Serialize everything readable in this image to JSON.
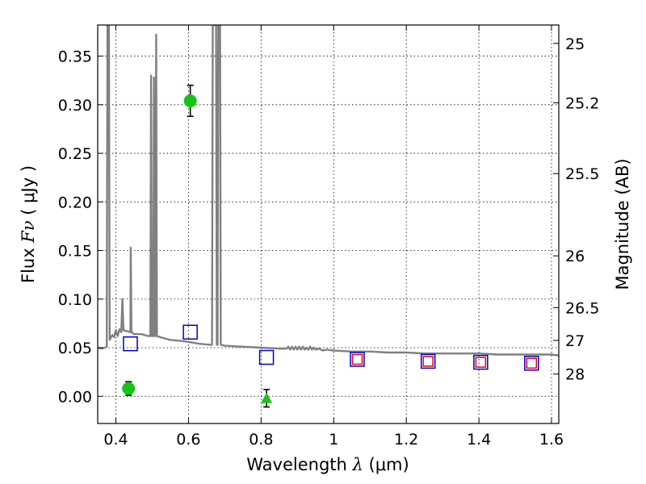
{
  "chart_data": {
    "type": "scatter",
    "xlabel": {
      "prefix": "Wavelength  ",
      "symbol": "λ",
      "suffix": " (μm)"
    },
    "ylabel": {
      "prefix": "Flux  ",
      "symbol": "Fν",
      "suffix": "  ( μJy )"
    },
    "y2label": "Magnitude (AB)",
    "xlim": [
      0.35,
      1.62
    ],
    "ylim": [
      -0.028,
      0.382
    ],
    "grid": true,
    "x_ticks": [
      {
        "value": 0.4,
        "label": "0.4"
      },
      {
        "value": 0.6,
        "label": "0.6"
      },
      {
        "value": 0.8,
        "label": "0.8"
      },
      {
        "value": 1.0,
        "label": "1"
      },
      {
        "value": 1.2,
        "label": "1.2"
      },
      {
        "value": 1.4,
        "label": "1.4"
      },
      {
        "value": 1.6,
        "label": "1.6"
      }
    ],
    "y_ticks": [
      {
        "value": 0.0,
        "label": "0.00"
      },
      {
        "value": 0.05,
        "label": "0.05"
      },
      {
        "value": 0.1,
        "label": "0.10"
      },
      {
        "value": 0.15,
        "label": "0.15"
      },
      {
        "value": 0.2,
        "label": "0.20"
      },
      {
        "value": 0.25,
        "label": "0.25"
      },
      {
        "value": 0.3,
        "label": "0.30"
      },
      {
        "value": 0.35,
        "label": "0.35"
      }
    ],
    "magnitude_ticks": [
      {
        "flux": 0.3631,
        "label": "25"
      },
      {
        "flux": 0.302,
        "label": "25.2"
      },
      {
        "flux": 0.2291,
        "label": "25.5"
      },
      {
        "flux": 0.1445,
        "label": "26"
      },
      {
        "flux": 0.0912,
        "label": "26.5"
      },
      {
        "flux": 0.0575,
        "label": "27"
      },
      {
        "flux": 0.0229,
        "label": "28"
      }
    ],
    "series": [
      {
        "kind": "line",
        "color": "#808080",
        "points": [
          [
            0.35,
            0.05
          ],
          [
            0.36,
            0.049
          ],
          [
            0.37,
            0.05
          ],
          [
            0.375,
            0.051
          ],
          [
            0.377,
            0.382
          ],
          [
            0.381,
            0.382
          ],
          [
            0.383,
            0.058
          ],
          [
            0.39,
            0.063
          ],
          [
            0.395,
            0.061
          ],
          [
            0.4,
            0.068
          ],
          [
            0.405,
            0.062
          ],
          [
            0.41,
            0.069
          ],
          [
            0.415,
            0.066
          ],
          [
            0.418,
            0.1
          ],
          [
            0.421,
            0.068
          ],
          [
            0.43,
            0.067
          ],
          [
            0.44,
            0.066
          ],
          [
            0.441,
            0.153
          ],
          [
            0.443,
            0.066
          ],
          [
            0.45,
            0.064
          ],
          [
            0.47,
            0.064
          ],
          [
            0.49,
            0.062
          ],
          [
            0.495,
            0.062
          ],
          [
            0.497,
            0.33
          ],
          [
            0.499,
            0.062
          ],
          [
            0.503,
            0.062
          ],
          [
            0.505,
            0.328
          ],
          [
            0.507,
            0.062
          ],
          [
            0.509,
            0.062
          ],
          [
            0.511,
            0.372
          ],
          [
            0.513,
            0.062
          ],
          [
            0.53,
            0.06
          ],
          [
            0.55,
            0.058
          ],
          [
            0.58,
            0.057
          ],
          [
            0.6,
            0.056
          ],
          [
            0.63,
            0.054
          ],
          [
            0.66,
            0.053
          ],
          [
            0.665,
            0.053
          ],
          [
            0.667,
            0.382
          ],
          [
            0.676,
            0.382
          ],
          [
            0.678,
            0.053
          ],
          [
            0.68,
            0.053
          ],
          [
            0.682,
            0.382
          ],
          [
            0.687,
            0.382
          ],
          [
            0.689,
            0.053
          ],
          [
            0.7,
            0.052
          ],
          [
            0.75,
            0.051
          ],
          [
            0.8,
            0.05
          ],
          [
            0.85,
            0.049
          ],
          [
            0.87,
            0.049
          ],
          [
            0.875,
            0.051
          ],
          [
            0.88,
            0.048
          ],
          [
            0.885,
            0.051
          ],
          [
            0.89,
            0.048
          ],
          [
            0.895,
            0.051
          ],
          [
            0.9,
            0.048
          ],
          [
            0.905,
            0.051
          ],
          [
            0.91,
            0.048
          ],
          [
            0.915,
            0.051
          ],
          [
            0.92,
            0.048
          ],
          [
            0.925,
            0.05
          ],
          [
            0.93,
            0.048
          ],
          [
            0.935,
            0.051
          ],
          [
            0.94,
            0.048
          ],
          [
            0.945,
            0.05
          ],
          [
            0.95,
            0.048
          ],
          [
            0.96,
            0.049
          ],
          [
            0.97,
            0.047
          ],
          [
            0.98,
            0.048
          ],
          [
            1.0,
            0.047
          ],
          [
            1.05,
            0.046
          ],
          [
            1.1,
            0.046
          ],
          [
            1.15,
            0.045
          ],
          [
            1.2,
            0.045
          ],
          [
            1.25,
            0.044
          ],
          [
            1.3,
            0.044
          ],
          [
            1.35,
            0.044
          ],
          [
            1.4,
            0.044
          ],
          [
            1.45,
            0.043
          ],
          [
            1.5,
            0.043
          ],
          [
            1.55,
            0.043
          ],
          [
            1.6,
            0.043
          ],
          [
            1.62,
            0.042
          ]
        ]
      },
      {
        "kind": "circle",
        "color": "#17c317",
        "points": [
          {
            "x": 0.435,
            "y": 0.008,
            "err": 0.007
          },
          {
            "x": 0.605,
            "y": 0.304,
            "err": 0.016
          }
        ]
      },
      {
        "kind": "triangle",
        "color": "#17c317",
        "points": [
          {
            "x": 0.815,
            "y": -0.002,
            "err": 0.009
          }
        ]
      },
      {
        "kind": "square-blue",
        "color": "#0000cc",
        "points": [
          {
            "x": 0.44,
            "y": 0.054
          },
          {
            "x": 0.605,
            "y": 0.066
          },
          {
            "x": 0.815,
            "y": 0.04
          },
          {
            "x": 1.065,
            "y": 0.038
          },
          {
            "x": 1.26,
            "y": 0.036
          },
          {
            "x": 1.405,
            "y": 0.035
          },
          {
            "x": 1.545,
            "y": 0.034
          }
        ]
      },
      {
        "kind": "square-red",
        "color": "#e3001b",
        "points": [
          {
            "x": 1.065,
            "y": 0.038
          },
          {
            "x": 1.26,
            "y": 0.036
          },
          {
            "x": 1.405,
            "y": 0.035
          },
          {
            "x": 1.545,
            "y": 0.034
          }
        ]
      }
    ]
  }
}
